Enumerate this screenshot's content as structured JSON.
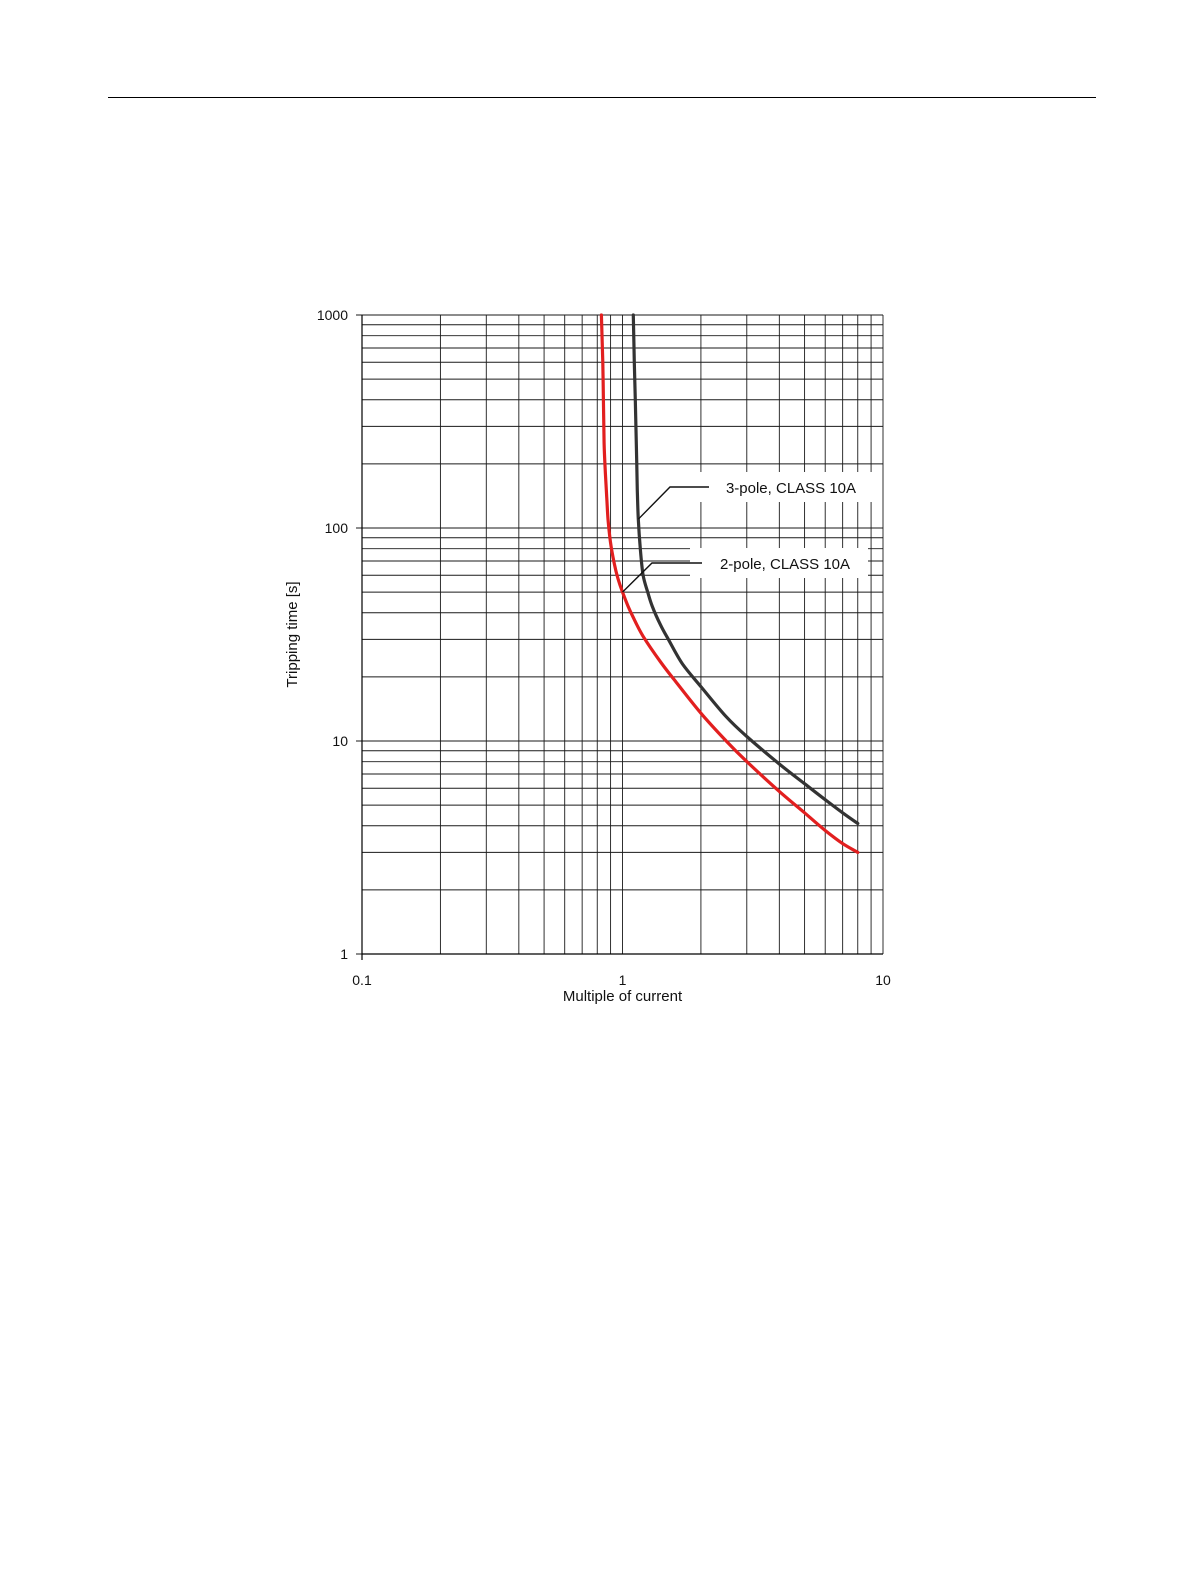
{
  "chart_data": {
    "type": "line",
    "title": "",
    "xlabel": "Multiple of current",
    "ylabel": "Tripping time [s]",
    "x_scale": "log",
    "y_scale": "log",
    "xlim": [
      0.1,
      10
    ],
    "ylim": [
      1,
      1000
    ],
    "grid": true,
    "x_ticks": [
      "0.1",
      "1",
      "10"
    ],
    "y_ticks": [
      "1000",
      "100",
      "10",
      "1"
    ],
    "series": [
      {
        "name": "3-pole, CLASS 10A",
        "color": "#333333",
        "x": [
          1.1,
          1.11,
          1.12,
          1.13,
          1.14,
          1.15,
          1.17,
          1.2,
          1.25,
          1.3,
          1.4,
          1.5,
          1.7,
          2.0,
          2.5,
          3.0,
          4.0,
          5.0,
          6.0,
          7.0,
          8.0
        ],
        "y": [
          1000,
          600,
          400,
          250,
          150,
          110,
          80,
          60,
          50,
          43,
          35,
          30,
          23,
          18,
          13,
          10.5,
          7.8,
          6.3,
          5.3,
          4.6,
          4.1
        ]
      },
      {
        "name": "2-pole, CLASS 10A",
        "color": "#e21f1f",
        "x": [
          0.83,
          0.84,
          0.845,
          0.85,
          0.86,
          0.87,
          0.88,
          0.9,
          0.93,
          0.96,
          1.0,
          1.05,
          1.1,
          1.2,
          1.4,
          1.6,
          2.0,
          2.5,
          3.0,
          4.0,
          5.0,
          6.0,
          7.0,
          8.0
        ],
        "y": [
          1000,
          600,
          400,
          250,
          180,
          140,
          110,
          85,
          68,
          58,
          50,
          43,
          38,
          31,
          23.5,
          19,
          13.5,
          10,
          8,
          5.8,
          4.6,
          3.8,
          3.3,
          3.0
        ]
      }
    ],
    "annotations": [
      {
        "text": "3-pole, CLASS 10A",
        "series": "3-pole, CLASS 10A"
      },
      {
        "text": "2-pole, CLASS 10A",
        "series": "2-pole, CLASS 10A"
      }
    ]
  }
}
